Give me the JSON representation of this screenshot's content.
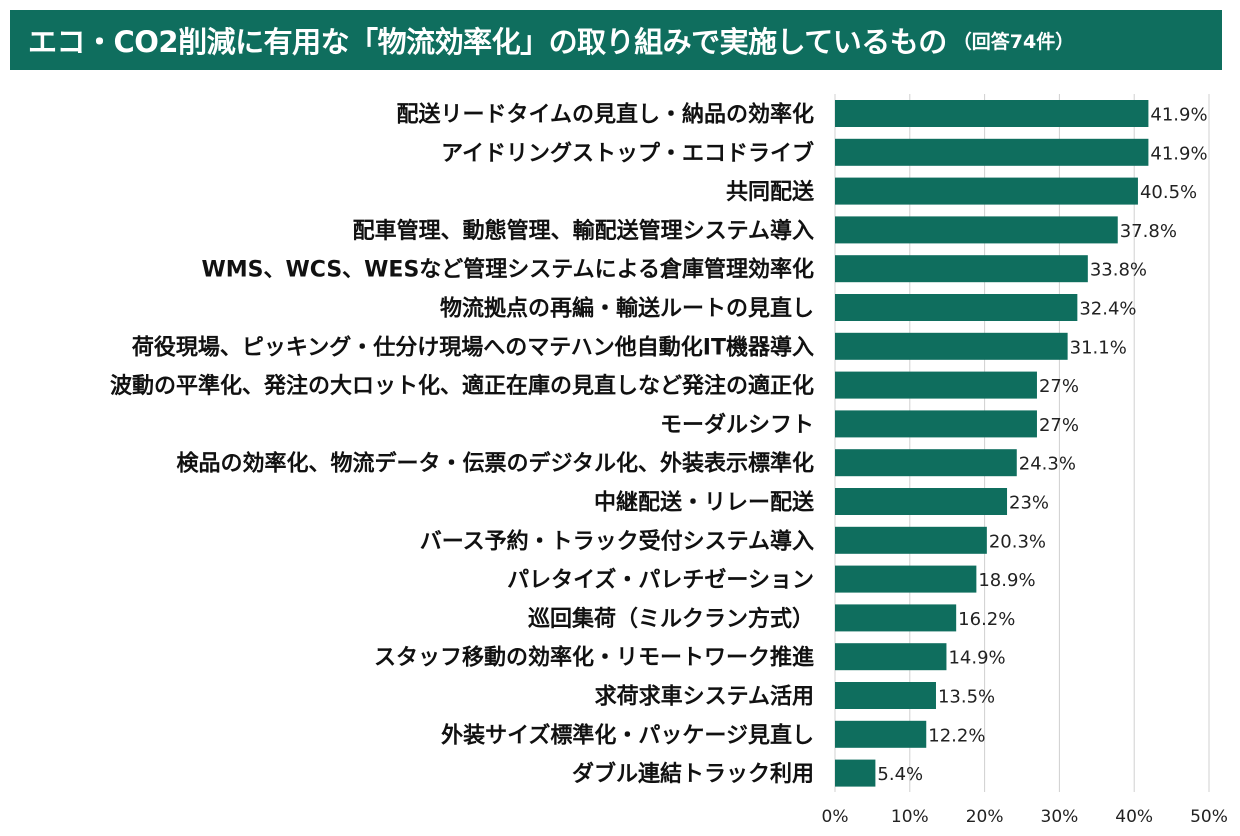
{
  "title": {
    "main": "エコ・CO2削減に有用な「物流効率化」の取り組みで実施しているもの",
    "sub": "（回答74件）"
  },
  "colors": {
    "title_bg": "#0f6e5e",
    "bar": "#0f6e5e",
    "grid": "#d0d0d0"
  },
  "chart_data": {
    "type": "bar",
    "orientation": "horizontal",
    "title": "エコ・CO2削減に有用な「物流効率化」の取り組みで実施しているもの（回答74件）",
    "categories": [
      "配送リードタイムの見直し・納品の効率化",
      "アイドリングストップ・エコドライブ",
      "共同配送",
      "配車管理、動態管理、輸配送管理システム導入",
      "WMS、WCS、WESなど管理システムによる倉庫管理効率化",
      "物流拠点の再編・輸送ルートの見直し",
      "荷役現場、ピッキング・仕分け現場へのマテハン他自動化IT機器導入",
      "波動の平準化、発注の大ロット化、適正在庫の見直しなど発注の適正化",
      "モーダルシフト",
      "検品の効率化、物流データ・伝票のデジタル化、外装表示標準化",
      "中継配送・リレー配送",
      "バース予約・トラック受付システム導入",
      "パレタイズ・パレチゼーション",
      "巡回集荷（ミルクラン方式）",
      "スタッフ移動の効率化・リモートワーク推進",
      "求荷求車システム活用",
      "外装サイズ標準化・パッケージ見直し",
      "ダブル連結トラック利用"
    ],
    "values": [
      41.9,
      41.9,
      40.5,
      37.8,
      33.8,
      32.4,
      31.1,
      27,
      27,
      24.3,
      23,
      20.3,
      18.9,
      16.2,
      14.9,
      13.5,
      12.2,
      5.4
    ],
    "value_labels": [
      "41.9%",
      "41.9%",
      "40.5%",
      "37.8%",
      "33.8%",
      "32.4%",
      "31.1%",
      "27%",
      "27%",
      "24.3%",
      "23%",
      "20.3%",
      "18.9%",
      "16.2%",
      "14.9%",
      "13.5%",
      "12.2%",
      "5.4%"
    ],
    "xlim": [
      0,
      50
    ],
    "ticks": [
      0,
      10,
      20,
      30,
      40,
      50
    ],
    "tick_labels": [
      "0%",
      "10%",
      "20%",
      "30%",
      "40%",
      "50%"
    ],
    "grid": true,
    "legend": "none"
  }
}
